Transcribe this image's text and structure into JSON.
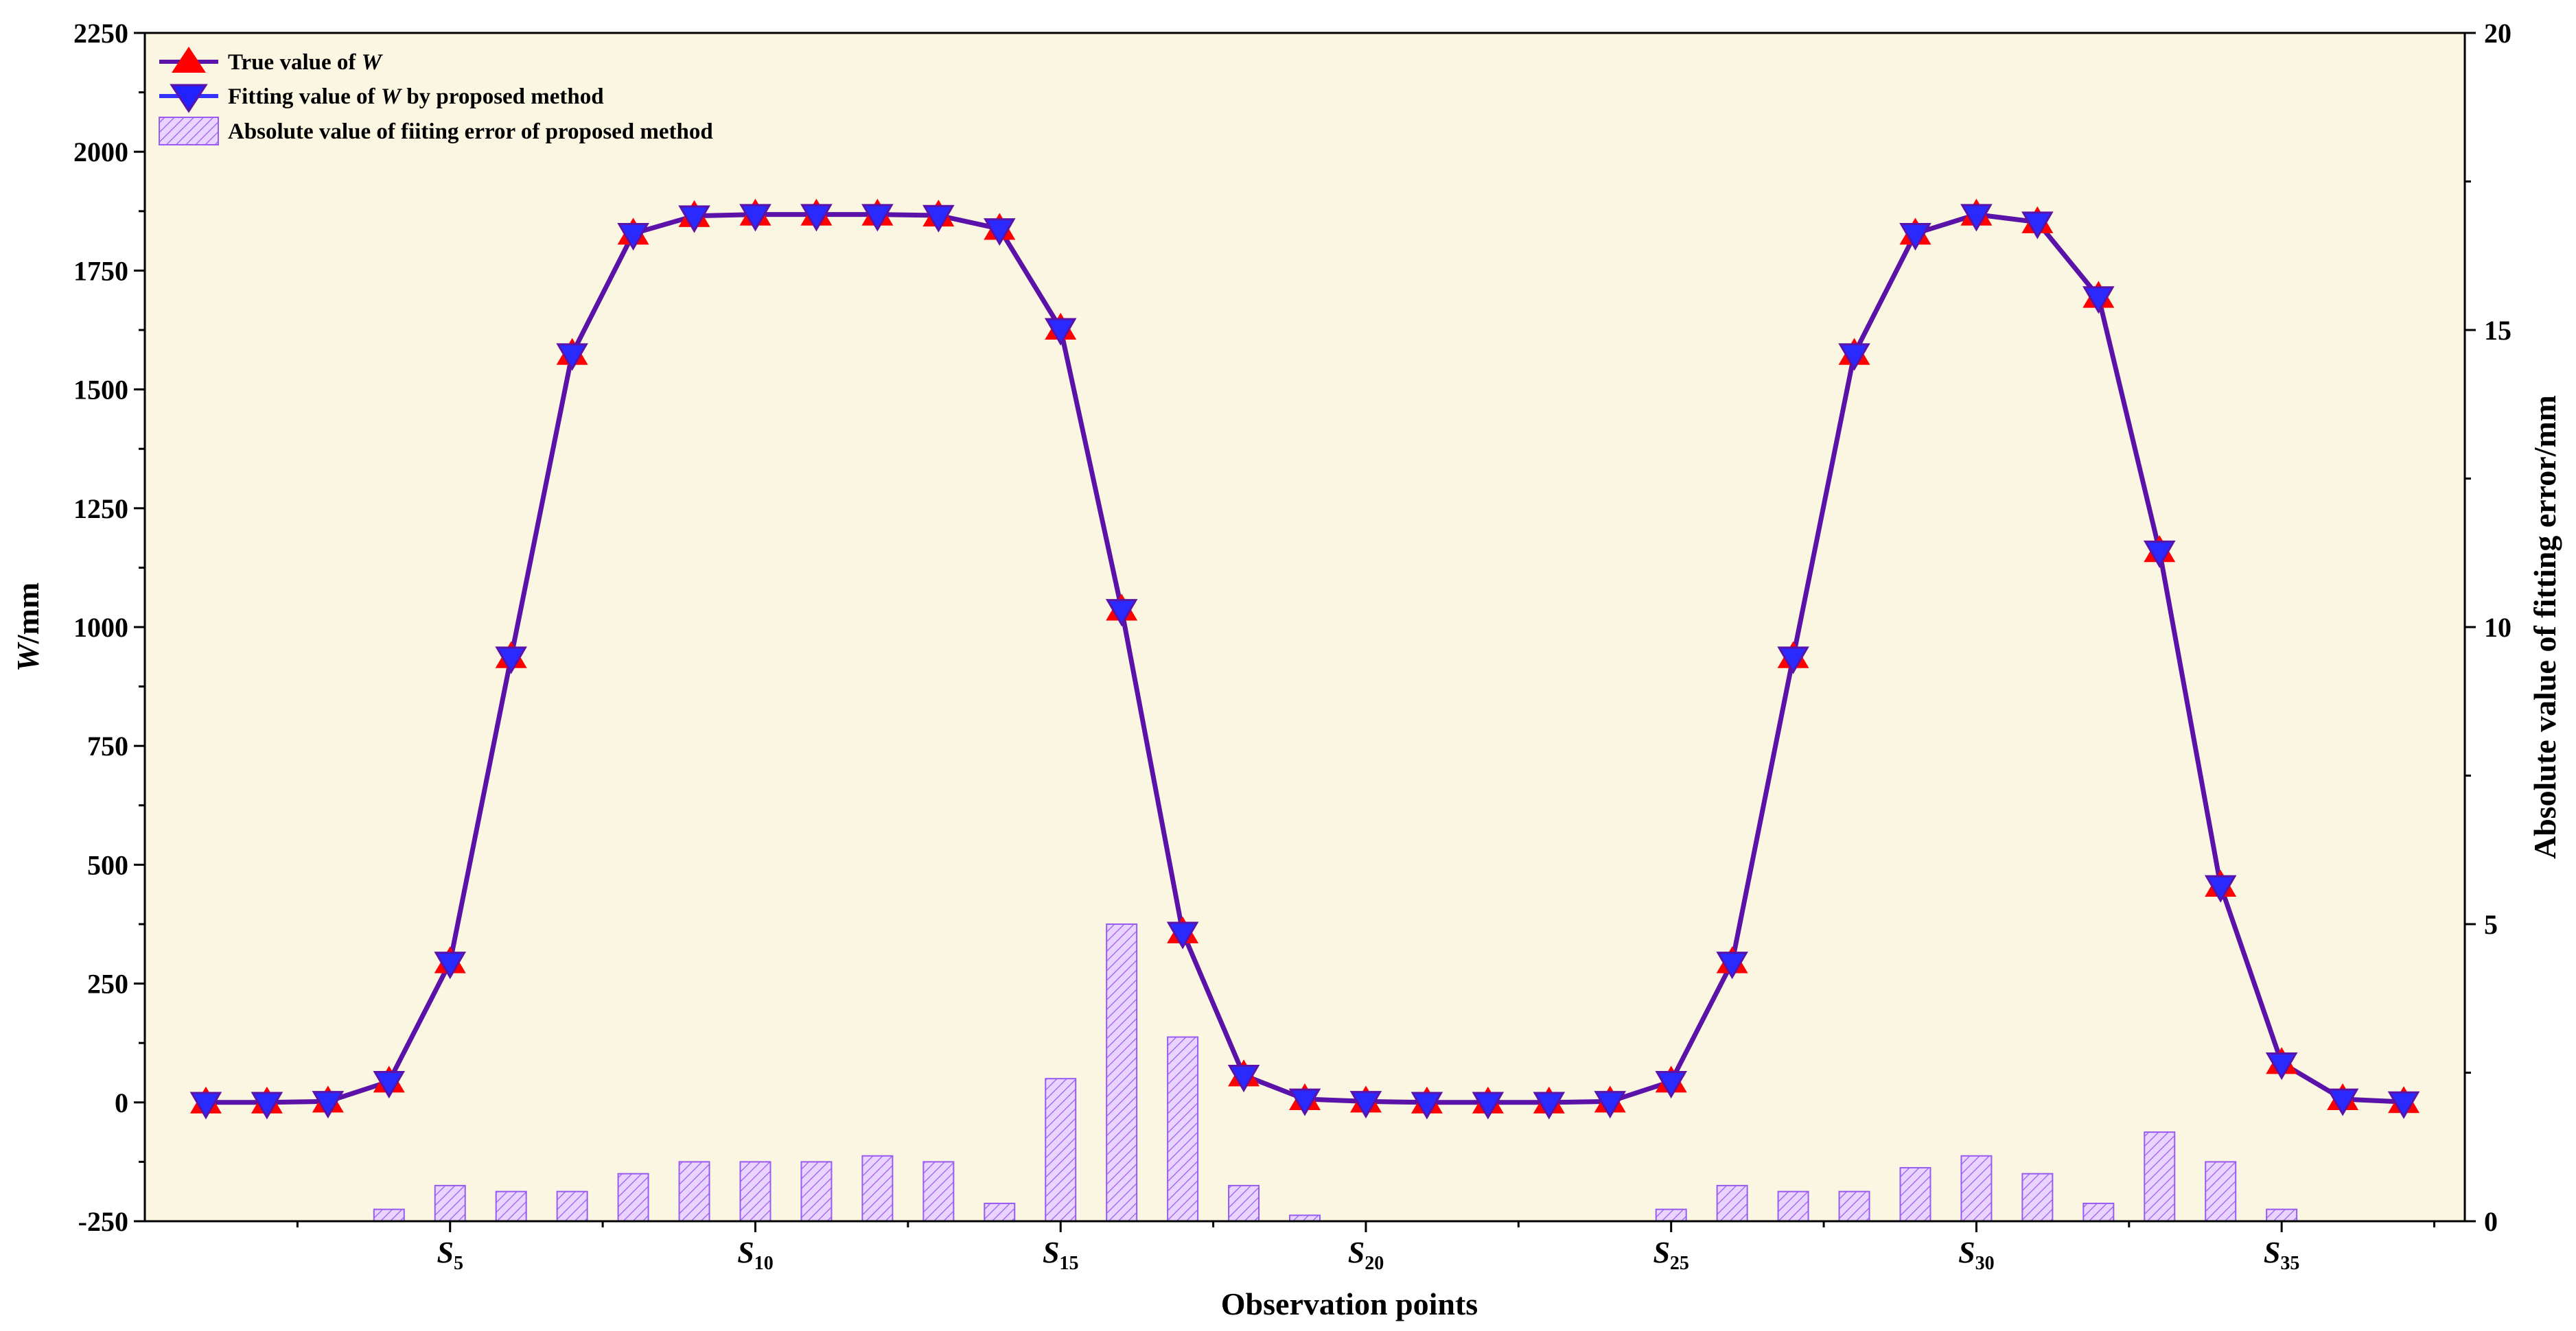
{
  "chart_data": {
    "type": "line+bar",
    "plot_background": "#faf6e1",
    "xlabel": "Observation points",
    "ylabel_left_italic": "W",
    "ylabel_left_rest": "/mm",
    "ylabel_right": "Absolute value of fitting error/mm",
    "x_range": [
      0,
      38
    ],
    "y_left_range": [
      -250,
      2250
    ],
    "y_right_range": [
      0,
      20
    ],
    "y_left_ticks": [
      -250,
      0,
      250,
      500,
      750,
      1000,
      1250,
      1500,
      1750,
      2000,
      2250
    ],
    "y_right_ticks": [
      0,
      5,
      10,
      15,
      20
    ],
    "x_tick_labels": [
      {
        "x": 5,
        "base": "S",
        "sub": "5"
      },
      {
        "x": 10,
        "base": "S",
        "sub": "10"
      },
      {
        "x": 15,
        "base": "S",
        "sub": "15"
      },
      {
        "x": 20,
        "base": "S",
        "sub": "20"
      },
      {
        "x": 25,
        "base": "S",
        "sub": "25"
      },
      {
        "x": 30,
        "base": "S",
        "sub": "30"
      },
      {
        "x": 35,
        "base": "S",
        "sub": "35"
      }
    ],
    "x": [
      1,
      2,
      3,
      4,
      5,
      6,
      7,
      8,
      9,
      10,
      11,
      12,
      13,
      14,
      15,
      16,
      17,
      18,
      19,
      20,
      21,
      22,
      23,
      24,
      25,
      26,
      27,
      28,
      29,
      30,
      31,
      32,
      33,
      34,
      35,
      36,
      37
    ],
    "series": [
      {
        "name_prefix": "True value of ",
        "name_italic": "W",
        "name_suffix": "",
        "kind": "line",
        "marker": "triangle-up",
        "color": "#ff0000",
        "values": [
          0,
          0,
          2,
          44,
          295,
          937,
          1575,
          1828,
          1865,
          1868,
          1868,
          1868,
          1866,
          1838,
          1628,
          1037,
          358,
          57,
          7,
          2,
          0,
          0,
          0,
          2,
          44,
          295,
          937,
          1575,
          1828,
          1868,
          1852,
          1695,
          1160,
          456,
          83,
          7,
          1
        ]
      },
      {
        "name_prefix": "Fitting value of ",
        "name_italic": "W",
        "name_suffix": " by proposed method",
        "kind": "line",
        "marker": "triangle-down",
        "color": "#3333ff",
        "values": [
          0,
          0,
          2,
          44,
          295,
          937,
          1575,
          1828,
          1865,
          1868,
          1868,
          1868,
          1866,
          1838,
          1628,
          1037,
          358,
          57,
          7,
          2,
          0,
          0,
          0,
          2,
          44,
          295,
          937,
          1575,
          1828,
          1868,
          1852,
          1695,
          1160,
          456,
          83,
          7,
          1
        ]
      },
      {
        "name": "Absolute value of fiiting error of proposed method",
        "kind": "bar",
        "axis": "right",
        "color": "#cc99ff",
        "values": [
          0,
          0,
          0,
          0.2,
          0.6,
          0.5,
          0.5,
          0.8,
          1.0,
          1.0,
          1.0,
          1.1,
          1.0,
          0.3,
          2.4,
          5.0,
          3.1,
          0.6,
          0.1,
          0,
          0,
          0,
          0,
          0,
          0.2,
          0.6,
          0.5,
          0.5,
          0.9,
          1.1,
          0.8,
          0.3,
          1.5,
          1.0,
          0.2,
          0,
          0
        ]
      }
    ],
    "line_color": "#5a12a8",
    "legend_position": "top-left",
    "grid": false
  }
}
